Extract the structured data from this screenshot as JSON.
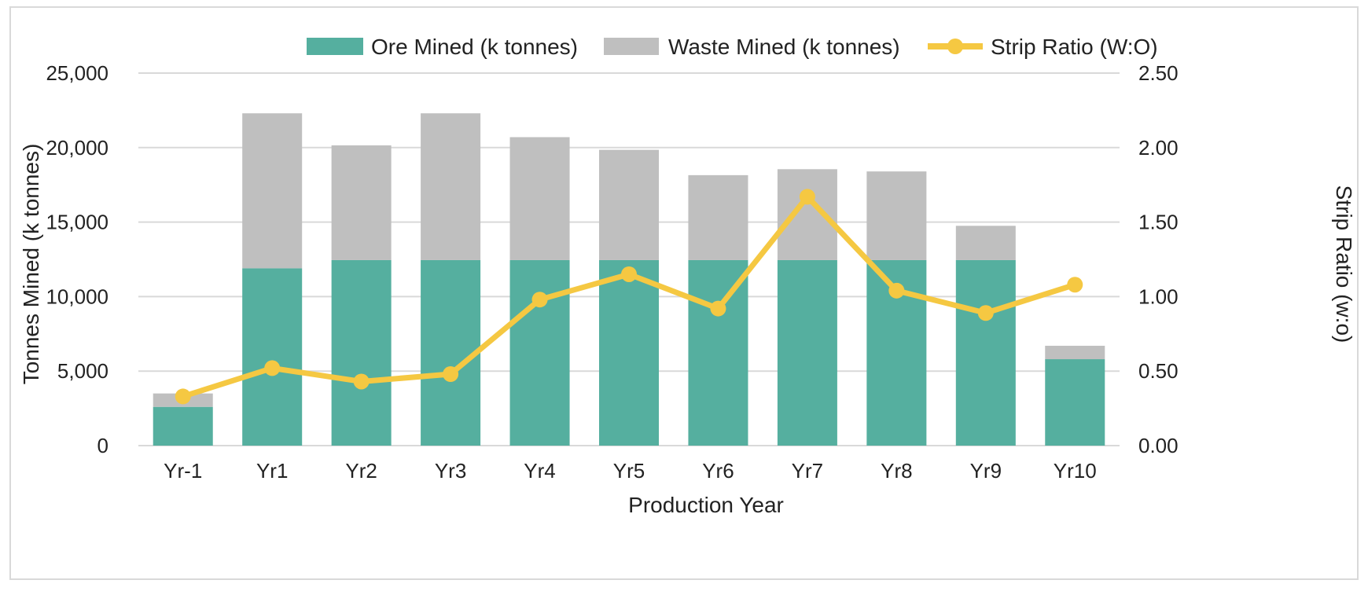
{
  "chart_data": {
    "type": "bar",
    "stacked": true,
    "title": "",
    "categories": [
      "Yr-1",
      "Yr1",
      "Yr2",
      "Yr3",
      "Yr4",
      "Yr5",
      "Yr6",
      "Yr7",
      "Yr8",
      "Yr9",
      "Yr10"
    ],
    "series": [
      {
        "name": "Ore Mined (k tonnes)",
        "type": "bar",
        "axis": "left",
        "color": "#55af9f",
        "values": [
          2600,
          11900,
          12450,
          12450,
          12450,
          12450,
          12450,
          12450,
          12450,
          12450,
          5800
        ]
      },
      {
        "name": "Waste Mined (k tonnes)",
        "type": "bar",
        "axis": "left",
        "color": "#bfbfbf",
        "values": [
          900,
          10400,
          7700,
          9850,
          8250,
          7400,
          5700,
          6100,
          5950,
          2300,
          900
        ]
      },
      {
        "name": "Strip Ratio (W:O)",
        "type": "line",
        "axis": "right",
        "color": "#f5c842",
        "values": [
          0.33,
          0.52,
          0.43,
          0.48,
          0.98,
          1.15,
          0.92,
          1.67,
          1.04,
          0.89,
          1.08
        ]
      }
    ],
    "xlabel": "Production Year",
    "ylabel": "Tonnes Mined (k tonnes)",
    "y2label": "Strip Ratio (w:o)",
    "ylim": [
      0,
      25000
    ],
    "y2lim": [
      0,
      2.5
    ],
    "yticks": [
      "0",
      "5,000",
      "10,000",
      "15,000",
      "20,000",
      "25,000"
    ],
    "y2ticks": [
      "0.00",
      "0.50",
      "1.00",
      "1.50",
      "2.00",
      "2.50"
    ],
    "gridlines": true,
    "legend_position": "top-center"
  }
}
